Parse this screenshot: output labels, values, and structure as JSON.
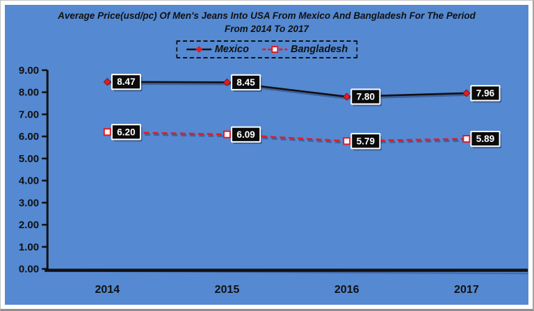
{
  "chart_data": {
    "type": "line",
    "title": "Average Price(usd/pc) Of Men's Jeans Into USA From Mexico And Bangladesh For The Period From 2014 To 2017",
    "categories": [
      "2014",
      "2015",
      "2016",
      "2017"
    ],
    "series": [
      {
        "name": "Mexico",
        "values": [
          8.47,
          8.45,
          7.8,
          7.96
        ],
        "point_labels": [
          "8.47",
          "8.45",
          "7.80",
          "7.96"
        ],
        "line_style": "solid",
        "marker": "diamond"
      },
      {
        "name": "Bangladesh",
        "values": [
          6.2,
          6.09,
          5.79,
          5.89
        ],
        "point_labels": [
          "6.20",
          "6.09",
          "5.79",
          "5.89"
        ],
        "line_style": "dashed",
        "marker": "square"
      }
    ],
    "xlabel": "",
    "ylabel": "",
    "ylim": [
      0,
      9
    ],
    "ytick_step": 1,
    "ytick_labels": [
      "0.00",
      "1.00",
      "2.00",
      "3.00",
      "4.00",
      "5.00",
      "6.00",
      "7.00",
      "8.00",
      "9.00"
    ],
    "legend_position": "top",
    "grid": false
  },
  "colors": {
    "background": "#5589D2",
    "text": "#111111",
    "axis": "#111111",
    "mexico_line": "#111111",
    "marker_red": "#E31B23",
    "data_label_bg": "#0B0B0B",
    "data_label_border": "#FFFFFF",
    "data_label_text": "#FFFFFF"
  }
}
